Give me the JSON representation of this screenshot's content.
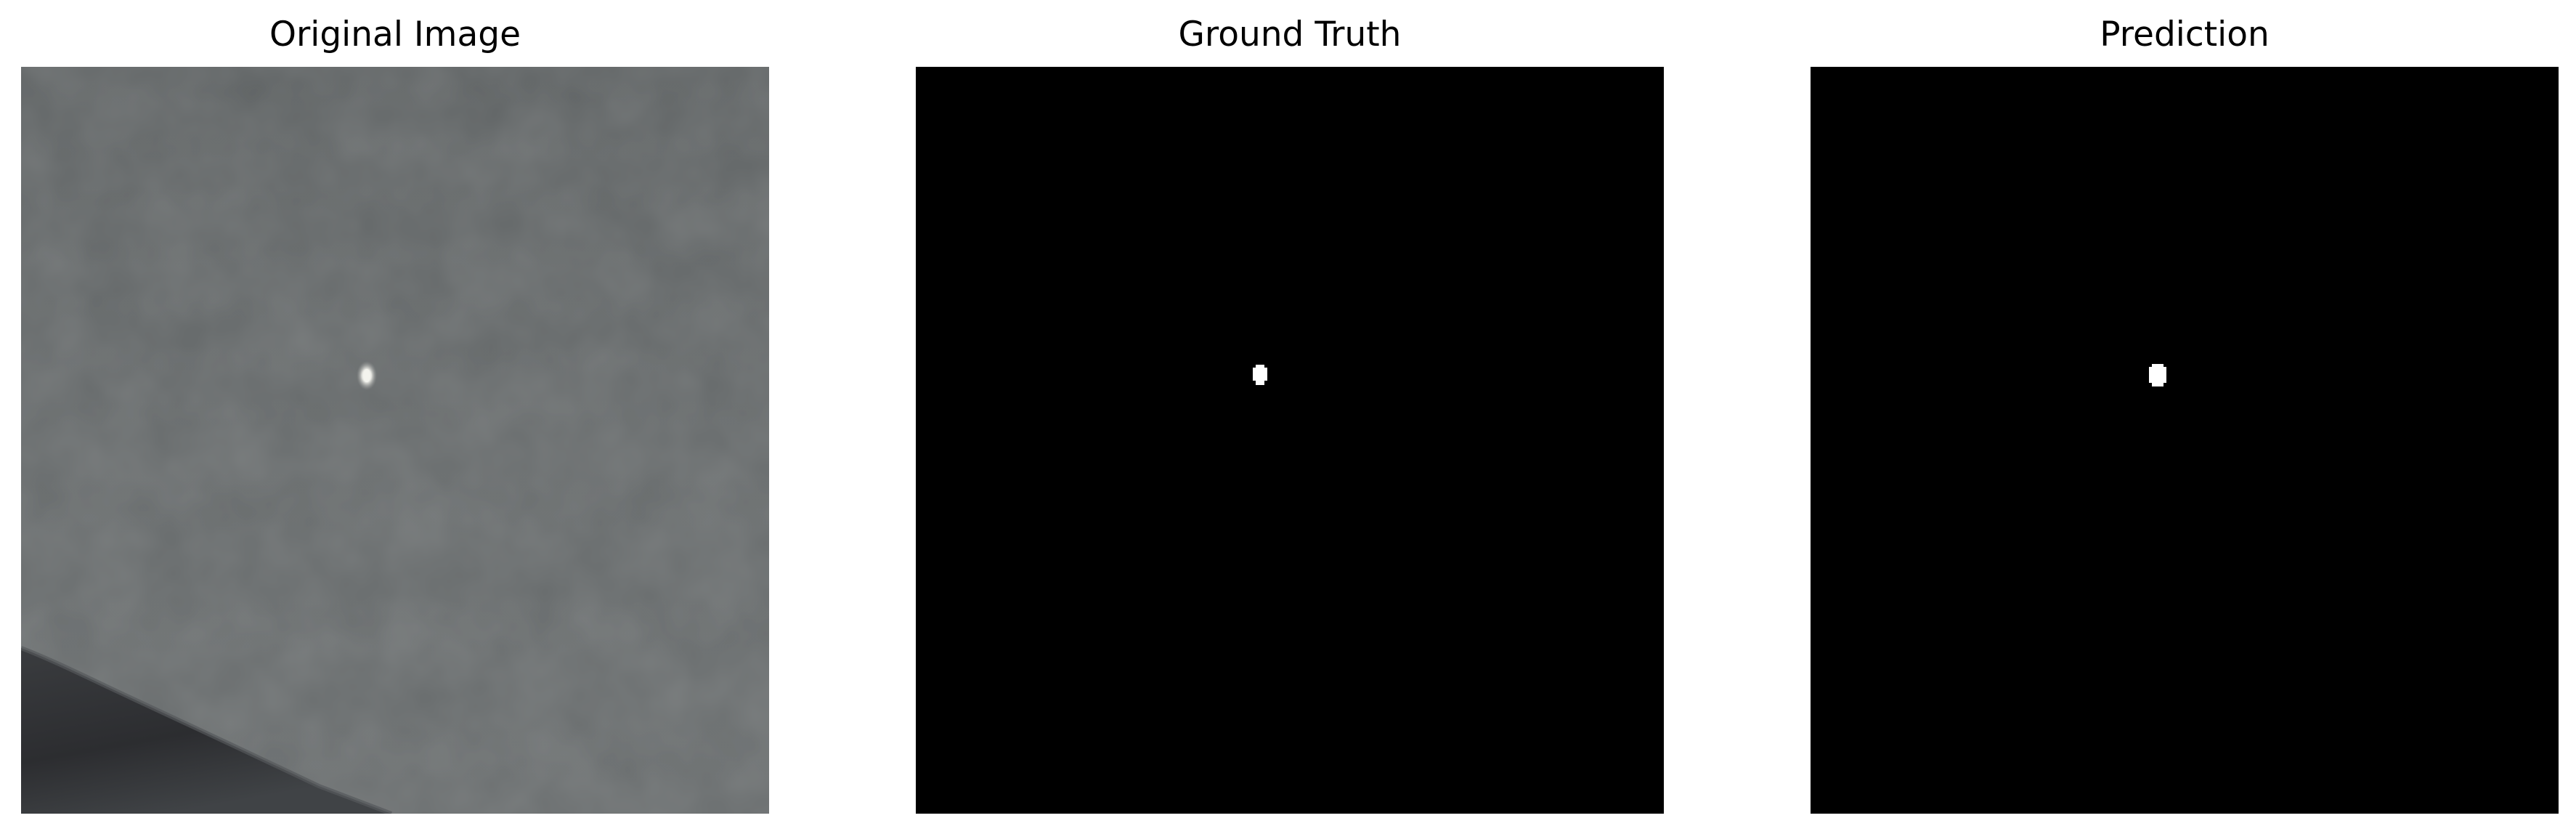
{
  "panels": [
    {
      "title": "Original Image",
      "kind": "photo",
      "colors": {
        "background": "#65696a",
        "ground_dark": "#2c2d30",
        "ground_mid": "#4a4d50",
        "bright_spot": "#f4f4ee"
      }
    },
    {
      "title": "Ground Truth",
      "kind": "mask",
      "colors": {
        "background": "#000000",
        "mask": "#ffffff"
      }
    },
    {
      "title": "Prediction",
      "kind": "mask",
      "colors": {
        "background": "#000000",
        "mask": "#ffffff"
      }
    }
  ]
}
